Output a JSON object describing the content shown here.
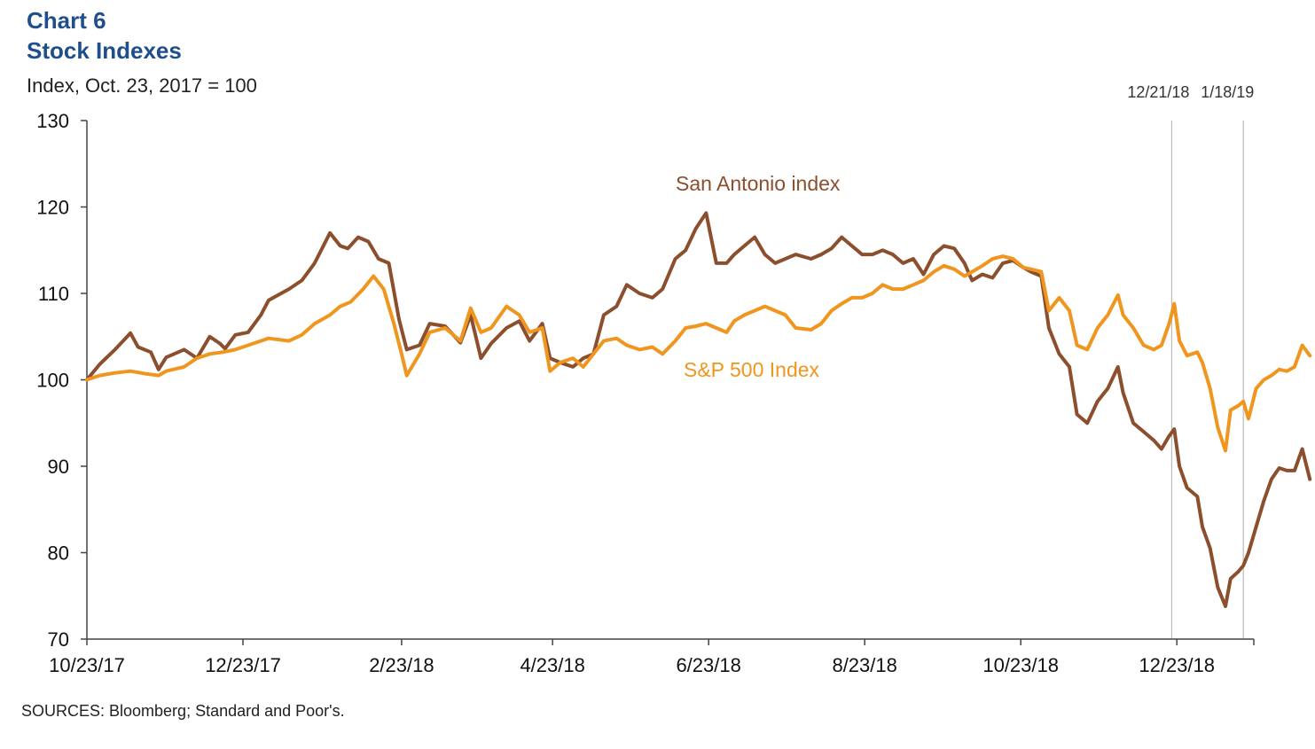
{
  "header": {
    "chart_number": "Chart 6",
    "title": "Stock Indexes",
    "ylabel": "Index, Oct. 23, 2017 = 100"
  },
  "footer": {
    "source": "SOURCES: Bloomberg; Standard and Poor's."
  },
  "colors": {
    "san_antonio": "#8c4f2d",
    "sp500": "#f0961e",
    "axis": "#444444",
    "marker_line": "#bbbbbb"
  },
  "chart_data": {
    "type": "line",
    "x_start": "10/23/17",
    "x_end": "1/18/19",
    "xticks": [
      "10/23/17",
      "12/23/17",
      "2/23/18",
      "4/23/18",
      "6/23/18",
      "8/23/18",
      "10/23/18",
      "12/23/18"
    ],
    "ylim": [
      70,
      130
    ],
    "yticks": [
      70,
      80,
      90,
      100,
      110,
      120,
      130
    ],
    "grid": false,
    "markers": [
      {
        "label": "12/21/18",
        "x": "12/21/18"
      },
      {
        "label": "1/18/19",
        "x": "1/18/19"
      }
    ],
    "series": [
      {
        "name": "San Antonio index",
        "color": "#8c4f2d",
        "points": [
          [
            "10/23/17",
            100.0
          ],
          [
            "10/28/17",
            101.8
          ],
          [
            "11/3/17",
            103.5
          ],
          [
            "11/9/17",
            105.4
          ],
          [
            "11/12/17",
            103.8
          ],
          [
            "11/17/17",
            103.2
          ],
          [
            "11/20/17",
            101.2
          ],
          [
            "11/23/17",
            102.6
          ],
          [
            "11/30/17",
            103.5
          ],
          [
            "12/5/17",
            102.5
          ],
          [
            "12/10/17",
            105.0
          ],
          [
            "12/14/17",
            104.2
          ],
          [
            "12/16/17",
            103.6
          ],
          [
            "12/20/17",
            105.2
          ],
          [
            "12/25/17",
            105.5
          ],
          [
            "12/30/17",
            107.5
          ],
          [
            "1/2/18",
            109.2
          ],
          [
            "1/10/18",
            110.5
          ],
          [
            "1/15/18",
            111.5
          ],
          [
            "1/20/18",
            113.5
          ],
          [
            "1/26/18",
            117.0
          ],
          [
            "1/30/18",
            115.5
          ],
          [
            "2/2/18",
            115.2
          ],
          [
            "2/6/18",
            116.5
          ],
          [
            "2/10/18",
            116.0
          ],
          [
            "2/14/18",
            114.0
          ],
          [
            "2/18/18",
            113.5
          ],
          [
            "2/22/18",
            107.0
          ],
          [
            "2/25/18",
            103.5
          ],
          [
            "3/2/18",
            104.0
          ],
          [
            "3/6/18",
            106.5
          ],
          [
            "3/12/18",
            106.2
          ],
          [
            "3/18/18",
            104.3
          ],
          [
            "3/22/18",
            107.5
          ],
          [
            "3/26/18",
            102.5
          ],
          [
            "3/30/18",
            104.2
          ],
          [
            "4/5/18",
            106.0
          ],
          [
            "4/10/18",
            106.8
          ],
          [
            "4/14/18",
            104.5
          ],
          [
            "4/19/18",
            106.5
          ],
          [
            "4/22/18",
            102.5
          ],
          [
            "4/26/18",
            102.0
          ],
          [
            "5/1/18",
            101.5
          ],
          [
            "5/5/18",
            102.5
          ],
          [
            "5/9/18",
            103.0
          ],
          [
            "5/13/18",
            107.5
          ],
          [
            "5/18/18",
            108.5
          ],
          [
            "5/22/18",
            111.0
          ],
          [
            "5/27/18",
            110.0
          ],
          [
            "6/1/18",
            109.5
          ],
          [
            "6/5/18",
            110.5
          ],
          [
            "6/10/18",
            114.0
          ],
          [
            "6/14/18",
            115.0
          ],
          [
            "6/18/18",
            117.5
          ],
          [
            "6/22/18",
            119.3
          ],
          [
            "6/26/18",
            113.5
          ],
          [
            "6/30/18",
            113.5
          ],
          [
            "7/3/18",
            114.5
          ],
          [
            "7/7/18",
            115.5
          ],
          [
            "7/11/18",
            116.5
          ],
          [
            "7/15/18",
            114.5
          ],
          [
            "7/19/18",
            113.5
          ],
          [
            "7/23/18",
            114.0
          ],
          [
            "7/27/18",
            114.5
          ],
          [
            "8/2/18",
            114.0
          ],
          [
            "8/6/18",
            114.5
          ],
          [
            "8/10/18",
            115.2
          ],
          [
            "8/14/18",
            116.5
          ],
          [
            "8/18/18",
            115.5
          ],
          [
            "8/22/18",
            114.5
          ],
          [
            "8/26/18",
            114.5
          ],
          [
            "8/30/18",
            115.0
          ],
          [
            "9/3/18",
            114.5
          ],
          [
            "9/7/18",
            113.5
          ],
          [
            "9/11/18",
            114.0
          ],
          [
            "9/15/18",
            112.2
          ],
          [
            "9/19/18",
            114.5
          ],
          [
            "9/23/18",
            115.5
          ],
          [
            "9/27/18",
            115.2
          ],
          [
            "10/1/18",
            113.5
          ],
          [
            "10/4/18",
            111.5
          ],
          [
            "10/8/18",
            112.2
          ],
          [
            "10/12/18",
            111.8
          ],
          [
            "10/16/18",
            113.5
          ],
          [
            "10/20/18",
            113.8
          ],
          [
            "10/24/18",
            113.0
          ],
          [
            "10/27/18",
            112.5
          ],
          [
            "10/31/18",
            112.0
          ],
          [
            "11/3/18",
            106.0
          ],
          [
            "11/7/18",
            103.0
          ],
          [
            "11/11/18",
            101.5
          ],
          [
            "11/14/18",
            96.0
          ],
          [
            "11/18/18",
            95.0
          ],
          [
            "11/22/18",
            97.5
          ],
          [
            "11/26/18",
            99.0
          ],
          [
            "11/30/18",
            101.5
          ],
          [
            "12/2/18",
            98.5
          ],
          [
            "12/6/18",
            95.0
          ],
          [
            "12/10/18",
            94.0
          ],
          [
            "12/14/18",
            93.0
          ],
          [
            "12/17/18",
            92.0
          ],
          [
            "12/20/18",
            93.5
          ],
          [
            "12/22/18",
            94.3
          ],
          [
            "12/24/18",
            90.0
          ],
          [
            "12/27/18",
            87.5
          ],
          [
            "12/31/18",
            86.5
          ],
          [
            "1/2/19",
            83.0
          ],
          [
            "1/5/19",
            80.5
          ],
          [
            "1/8/19",
            76.0
          ],
          [
            "1/11/19",
            73.8
          ],
          [
            "1/13/19",
            77.0
          ],
          [
            "1/16/19",
            77.8
          ],
          [
            "1/18/19",
            78.5
          ],
          [
            "1/20/19",
            80.0
          ],
          [
            "1/23/19",
            83.0
          ],
          [
            "1/26/19",
            86.0
          ],
          [
            "1/29/19",
            88.5
          ],
          [
            "2/1/19",
            89.8
          ],
          [
            "2/4/19",
            89.5
          ],
          [
            "2/7/19",
            89.5
          ],
          [
            "2/10/19",
            92.0
          ],
          [
            "2/13/19",
            88.5
          ]
        ]
      },
      {
        "name": "S&P 500 Index",
        "color": "#f0961e",
        "points": [
          [
            "10/23/17",
            100.0
          ],
          [
            "10/28/17",
            100.5
          ],
          [
            "11/3/17",
            100.8
          ],
          [
            "11/9/17",
            101.0
          ],
          [
            "11/15/17",
            100.7
          ],
          [
            "11/20/17",
            100.5
          ],
          [
            "11/23/17",
            101.0
          ],
          [
            "11/30/17",
            101.5
          ],
          [
            "12/5/17",
            102.5
          ],
          [
            "12/10/17",
            103.0
          ],
          [
            "12/15/17",
            103.2
          ],
          [
            "12/20/17",
            103.5
          ],
          [
            "12/25/17",
            104.0
          ],
          [
            "12/30/17",
            104.5
          ],
          [
            "1/2/18",
            104.8
          ],
          [
            "1/10/18",
            104.5
          ],
          [
            "1/15/18",
            105.2
          ],
          [
            "1/20/18",
            106.5
          ],
          [
            "1/26/18",
            107.5
          ],
          [
            "1/30/18",
            108.5
          ],
          [
            "2/3/18",
            109.0
          ],
          [
            "2/8/18",
            110.5
          ],
          [
            "2/12/18",
            112.0
          ],
          [
            "2/16/18",
            110.5
          ],
          [
            "2/20/18",
            106.5
          ],
          [
            "2/23/18",
            103.0
          ],
          [
            "2/25/18",
            100.5
          ],
          [
            "3/2/18",
            103.0
          ],
          [
            "3/6/18",
            105.5
          ],
          [
            "3/12/18",
            106.0
          ],
          [
            "3/18/18",
            104.5
          ],
          [
            "3/22/18",
            108.3
          ],
          [
            "3/26/18",
            105.5
          ],
          [
            "3/30/18",
            106.0
          ],
          [
            "4/5/18",
            108.5
          ],
          [
            "4/10/18",
            107.5
          ],
          [
            "4/14/18",
            105.5
          ],
          [
            "4/19/18",
            106.0
          ],
          [
            "4/22/18",
            101.0
          ],
          [
            "4/26/18",
            102.0
          ],
          [
            "5/1/18",
            102.5
          ],
          [
            "5/5/18",
            101.5
          ],
          [
            "5/9/18",
            103.0
          ],
          [
            "5/13/18",
            104.5
          ],
          [
            "5/18/18",
            104.8
          ],
          [
            "5/22/18",
            104.0
          ],
          [
            "5/27/18",
            103.5
          ],
          [
            "6/1/18",
            103.8
          ],
          [
            "6/5/18",
            103.0
          ],
          [
            "6/10/18",
            104.5
          ],
          [
            "6/14/18",
            106.0
          ],
          [
            "6/18/18",
            106.2
          ],
          [
            "6/22/18",
            106.5
          ],
          [
            "6/26/18",
            106.0
          ],
          [
            "6/30/18",
            105.5
          ],
          [
            "7/3/18",
            106.8
          ],
          [
            "7/7/18",
            107.5
          ],
          [
            "7/11/18",
            108.0
          ],
          [
            "7/15/18",
            108.5
          ],
          [
            "7/19/18",
            108.0
          ],
          [
            "7/23/18",
            107.5
          ],
          [
            "7/27/18",
            106.0
          ],
          [
            "8/2/18",
            105.8
          ],
          [
            "8/6/18",
            106.5
          ],
          [
            "8/10/18",
            108.0
          ],
          [
            "8/14/18",
            108.8
          ],
          [
            "8/18/18",
            109.5
          ],
          [
            "8/22/18",
            109.5
          ],
          [
            "8/26/18",
            110.0
          ],
          [
            "8/30/18",
            111.0
          ],
          [
            "9/3/18",
            110.5
          ],
          [
            "9/7/18",
            110.5
          ],
          [
            "9/11/18",
            111.0
          ],
          [
            "9/15/18",
            111.5
          ],
          [
            "9/19/18",
            112.5
          ],
          [
            "9/23/18",
            113.2
          ],
          [
            "9/27/18",
            112.8
          ],
          [
            "10/1/18",
            112.0
          ],
          [
            "10/4/18",
            112.5
          ],
          [
            "10/8/18",
            113.2
          ],
          [
            "10/12/18",
            114.0
          ],
          [
            "10/16/18",
            114.3
          ],
          [
            "10/20/18",
            114.0
          ],
          [
            "10/24/18",
            113.0
          ],
          [
            "10/27/18",
            112.8
          ],
          [
            "10/31/18",
            112.5
          ],
          [
            "11/3/18",
            108.0
          ],
          [
            "11/7/18",
            109.5
          ],
          [
            "11/11/18",
            108.0
          ],
          [
            "11/14/18",
            104.0
          ],
          [
            "11/18/18",
            103.5
          ],
          [
            "11/22/18",
            106.0
          ],
          [
            "11/26/18",
            107.5
          ],
          [
            "11/30/18",
            109.8
          ],
          [
            "12/2/18",
            107.5
          ],
          [
            "12/6/18",
            106.0
          ],
          [
            "12/10/18",
            104.0
          ],
          [
            "12/14/18",
            103.5
          ],
          [
            "12/17/18",
            104.0
          ],
          [
            "12/20/18",
            106.5
          ],
          [
            "12/22/18",
            108.8
          ],
          [
            "12/24/18",
            104.5
          ],
          [
            "12/27/18",
            102.8
          ],
          [
            "12/31/18",
            103.2
          ],
          [
            "1/2/19",
            102.0
          ],
          [
            "1/5/19",
            99.0
          ],
          [
            "1/8/19",
            94.5
          ],
          [
            "1/11/19",
            91.8
          ],
          [
            "1/13/19",
            96.5
          ],
          [
            "1/16/19",
            97.0
          ],
          [
            "1/18/19",
            97.5
          ],
          [
            "1/20/19",
            95.5
          ],
          [
            "1/23/19",
            99.0
          ],
          [
            "1/26/19",
            100.0
          ],
          [
            "1/29/19",
            100.5
          ],
          [
            "2/1/19",
            101.2
          ],
          [
            "2/4/19",
            101.0
          ],
          [
            "2/7/19",
            101.5
          ],
          [
            "2/10/19",
            104.0
          ],
          [
            "2/13/19",
            102.8
          ]
        ]
      }
    ],
    "annotations": [
      {
        "text": "San Antonio index",
        "series": "San Antonio index"
      },
      {
        "text": "S&P 500 Index",
        "series": "S&P 500 Index"
      }
    ]
  }
}
